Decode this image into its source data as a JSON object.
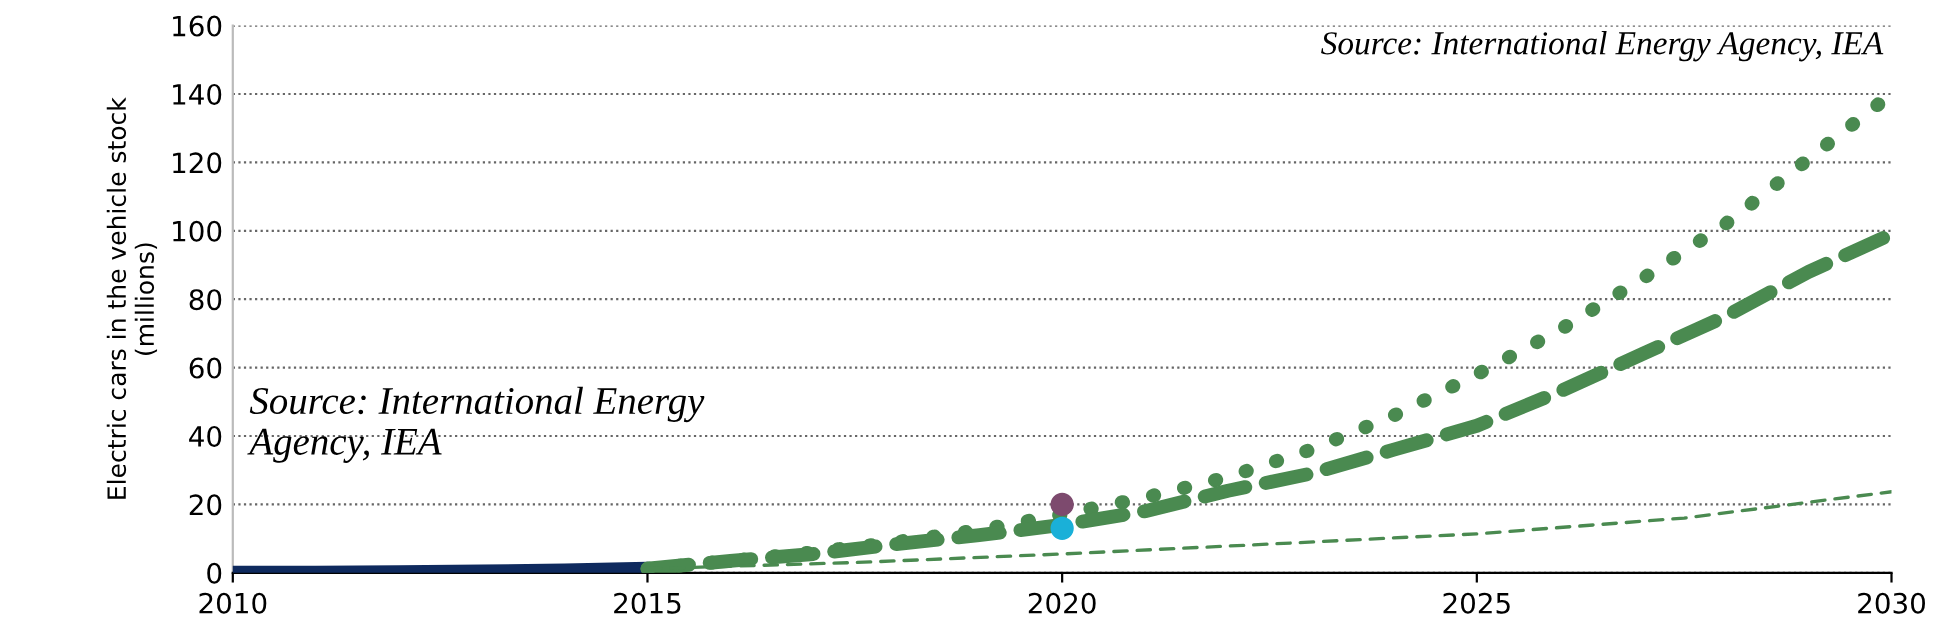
{
  "chart_data": {
    "type": "line",
    "ylabel": "Electric cars in the vehicle stock\n(millions)",
    "xlim": [
      2010,
      2030
    ],
    "xticks": [
      2010,
      2015,
      2020,
      2025,
      2030
    ],
    "ylim": [
      0,
      160
    ],
    "yticks": [
      0,
      20,
      40,
      60,
      80,
      100,
      120,
      140,
      160
    ],
    "grid": "y",
    "annotations": [
      "Source: International Energy Agency, IEA",
      "Source: International Energy\nAgency, IEA"
    ],
    "series": [
      {
        "color": "#0f2a5e",
        "line_style": "solid",
        "x": [
          2010,
          2011,
          2012,
          2013,
          2014,
          2015
        ],
        "values": [
          0,
          0.05,
          0.2,
          0.4,
          0.7,
          1.2
        ]
      },
      {
        "color": "#4a8a50",
        "line_style": "dotted",
        "x": [
          2015,
          2016,
          2017,
          2018,
          2019,
          2020,
          2021,
          2022,
          2023,
          2024,
          2025,
          2026,
          2027,
          2028,
          2029,
          2030
        ],
        "values": [
          1.2,
          3.5,
          6,
          9,
          12.5,
          17,
          22,
          28,
          36,
          46,
          58,
          71,
          86,
          102,
          121,
          140
        ]
      },
      {
        "color": "#4a8a50",
        "line_style": "dashed",
        "x": [
          2015,
          2016,
          2017,
          2018,
          2019,
          2020,
          2021,
          2022,
          2023,
          2024,
          2025,
          2026,
          2027,
          2028,
          2029,
          2030
        ],
        "values": [
          1.2,
          3.5,
          5.5,
          8.4,
          11,
          14,
          18,
          24,
          29,
          36,
          43,
          53,
          64,
          75,
          88,
          99
        ]
      },
      {
        "color": "#4a8a50",
        "line_style": "dashed",
        "x": [
          2015,
          2017.5,
          2020,
          2022.5,
          2025,
          2027.5,
          2030
        ],
        "values": [
          1.2,
          3,
          5.5,
          8.4,
          11.4,
          16,
          23.7
        ]
      },
      {
        "type": "scatter",
        "marker": "circle",
        "color": "#7d4a6e",
        "x": [
          2020
        ],
        "values": [
          20
        ]
      },
      {
        "type": "scatter",
        "marker": "circle",
        "color": "#1ab0d8",
        "x": [
          2020
        ],
        "values": [
          13
        ]
      }
    ]
  }
}
